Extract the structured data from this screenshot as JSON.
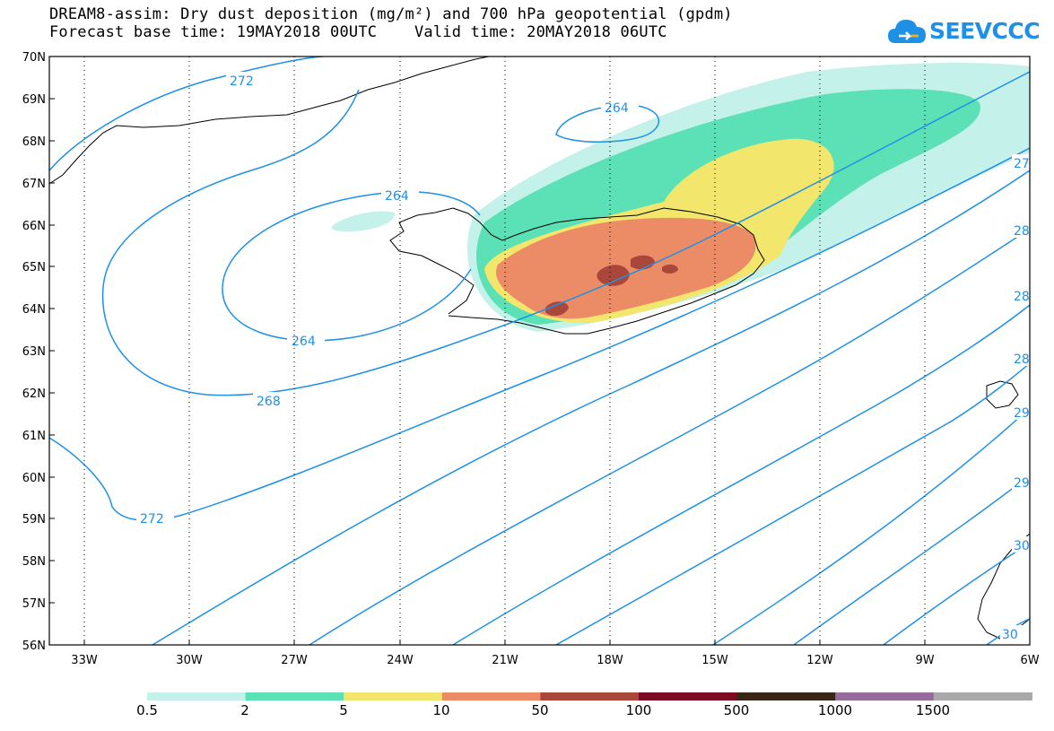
{
  "title": {
    "line1": "DREAM8-assim: Dry dust deposition (mg/m²) and 700 hPa geopotential (gpdm)",
    "line2": "Forecast base time: 19MAY2018 00UTC    Valid time: 20MAY2018 06UTC"
  },
  "logo": {
    "text": "SEEVCCC",
    "icon": "cloud-icon"
  },
  "map": {
    "lat_labels": [
      "70N",
      "69N",
      "68N",
      "67N",
      "66N",
      "65N",
      "64N",
      "63N",
      "62N",
      "61N",
      "60N",
      "59N",
      "58N",
      "57N",
      "56N"
    ],
    "lon_labels": [
      "33W",
      "30W",
      "27W",
      "24W",
      "21W",
      "18W",
      "15W",
      "12W",
      "9W",
      "6W"
    ],
    "lat_range": [
      56,
      70
    ],
    "lon_range": [
      -34.5,
      -6
    ],
    "colors": {
      "contour": "#1e90e6",
      "grid": "#000000",
      "coast": "#000000"
    }
  },
  "contours": {
    "labels": [
      "272",
      "264",
      "264",
      "264",
      "268",
      "272",
      "27",
      "28",
      "28",
      "28",
      "29",
      "29",
      "30",
      "30"
    ]
  },
  "legend": {
    "labels": [
      "0.5",
      "2",
      "5",
      "10",
      "50",
      "100",
      "500",
      "1000",
      "1500"
    ],
    "colors": [
      "#c4f2ea",
      "#5ce0b6",
      "#f3e66c",
      "#ec8c66",
      "#a9473a",
      "#7c0a24",
      "#3a2616",
      "#956c9a",
      "#a9a9a9"
    ]
  }
}
